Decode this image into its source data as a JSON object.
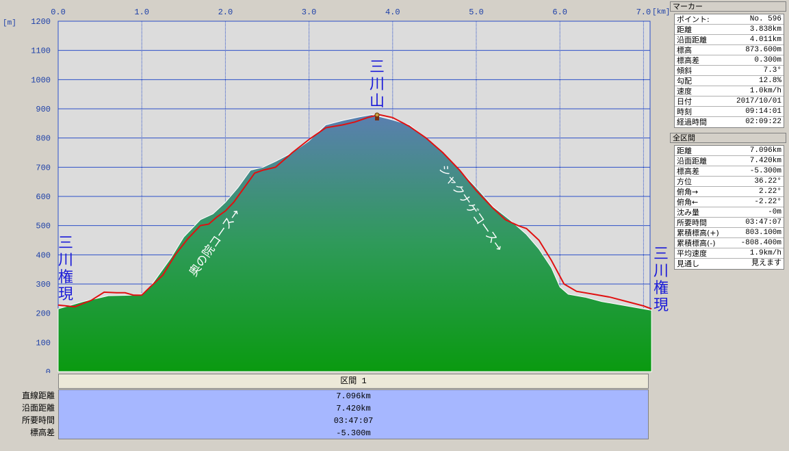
{
  "chart_data": {
    "type": "area",
    "title": "",
    "x_unit": "[km]",
    "y_unit": "[m]",
    "xlim": [
      0,
      7.1
    ],
    "ylim": [
      0,
      1200
    ],
    "x_ticks": [
      "0.0",
      "1.0",
      "2.0",
      "3.0",
      "4.0",
      "5.0",
      "6.0",
      "7.0"
    ],
    "y_ticks": [
      "1200",
      "1100",
      "1000",
      "900",
      "800",
      "700",
      "600",
      "500",
      "400",
      "300",
      "200",
      "100",
      "0"
    ],
    "grid": true,
    "series": [
      {
        "kind": "terrain",
        "x": [
          0,
          0.3,
          0.6,
          0.9,
          1.0,
          1.1,
          1.2,
          1.35,
          1.5,
          1.7,
          1.85,
          2.0,
          2.15,
          2.3,
          2.45,
          2.6,
          2.8,
          3.0,
          3.2,
          3.4,
          3.6,
          3.75,
          3.85,
          4.0,
          4.2,
          4.4,
          4.6,
          4.8,
          5.0,
          5.2,
          5.4,
          5.6,
          5.75,
          5.9,
          6.0,
          6.1,
          6.3,
          6.5,
          6.8,
          7.096
        ],
        "y": [
          215,
          240,
          260,
          262,
          265,
          290,
          330,
          390,
          460,
          520,
          540,
          580,
          630,
          690,
          700,
          720,
          750,
          790,
          845,
          860,
          872,
          880,
          873,
          862,
          845,
          800,
          750,
          690,
          630,
          565,
          520,
          470,
          420,
          355,
          290,
          265,
          255,
          240,
          225,
          210
        ]
      },
      {
        "kind": "track",
        "x": [
          0,
          0.2,
          0.4,
          0.55,
          0.7,
          0.8,
          0.9,
          1.0,
          1.1,
          1.25,
          1.4,
          1.55,
          1.7,
          1.8,
          1.9,
          2.0,
          2.1,
          2.2,
          2.35,
          2.45,
          2.6,
          2.8,
          3.0,
          3.2,
          3.4,
          3.55,
          3.7,
          3.838,
          4.0,
          4.2,
          4.4,
          4.6,
          4.8,
          5.0,
          5.2,
          5.35,
          5.5,
          5.6,
          5.75,
          5.9,
          6.05,
          6.2,
          6.4,
          6.6,
          6.8,
          7.0,
          7.096
        ],
        "y": [
          228,
          222,
          245,
          272,
          270,
          270,
          262,
          262,
          290,
          330,
          400,
          455,
          500,
          505,
          530,
          550,
          580,
          620,
          680,
          690,
          700,
          750,
          795,
          835,
          845,
          855,
          870,
          880,
          870,
          840,
          800,
          750,
          690,
          620,
          560,
          520,
          500,
          490,
          450,
          380,
          300,
          275,
          265,
          255,
          240,
          225,
          215
        ]
      }
    ]
  },
  "labels": {
    "summit": "三川山",
    "start": "三川権現",
    "end": "三川権現",
    "course_up": "奥の院コース→",
    "course_down": "シャクナゲコース→"
  },
  "colors": {
    "plot_bg": "#dcdcdc",
    "grid": "#2a4ec8",
    "terrain_top": "#5a7fb0",
    "terrain_mid": "#2f9a5a",
    "terrain_bottom": "#0a9a10",
    "track": "#e01010"
  },
  "section": {
    "header": "区間 1",
    "rows": [
      {
        "label": "直線距離",
        "value": "7.096km"
      },
      {
        "label": "沿面距離",
        "value": "7.420km"
      },
      {
        "label": "所要時間",
        "value": "03:47:07"
      },
      {
        "label": "標高差",
        "value": "-5.300m"
      }
    ]
  },
  "marker_panel": {
    "title": "マーカー",
    "rows": [
      {
        "key": "ポイント:",
        "value": "No. 596"
      },
      {
        "key": "距離",
        "value": "3.838km"
      },
      {
        "key": "沿面距離",
        "value": "4.011km"
      },
      {
        "key": "標高",
        "value": "873.600m"
      },
      {
        "key": "標高差",
        "value": "0.300m"
      },
      {
        "key": "傾斜",
        "value": "7.3°"
      },
      {
        "key": "勾配",
        "value": "12.8%"
      },
      {
        "key": "速度",
        "value": "1.0km/h"
      },
      {
        "key": "日付",
        "value": "2017/10/01"
      },
      {
        "key": "時刻",
        "value": "09:14:01"
      },
      {
        "key": "経過時間",
        "value": "02:09:22"
      }
    ]
  },
  "total_panel": {
    "title": "全区間",
    "rows": [
      {
        "key": "距離",
        "value": "7.096km"
      },
      {
        "key": "沿面距離",
        "value": "7.420km"
      },
      {
        "key": "標高差",
        "value": "-5.300m"
      },
      {
        "key": "方位",
        "value": "36.22°"
      },
      {
        "key": "俯角→",
        "value": "2.22°"
      },
      {
        "key": "俯角←",
        "value": "-2.22°"
      },
      {
        "key": "沈み量",
        "value": "-0m"
      },
      {
        "key": "所要時間",
        "value": "03:47:07"
      },
      {
        "key": "累積標高(+)",
        "value": "803.100m"
      },
      {
        "key": "累積標高(-)",
        "value": "-808.400m"
      },
      {
        "key": "平均速度",
        "value": "1.9km/h"
      },
      {
        "key": "見通し",
        "value": "見えます"
      }
    ]
  }
}
